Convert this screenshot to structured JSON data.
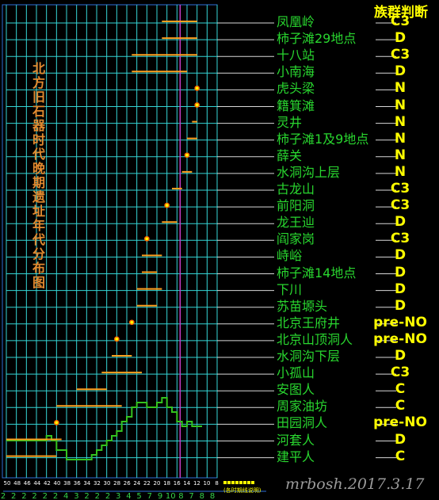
{
  "title_vertical": "北方旧石器时代晚期遗址年代分布图",
  "group_header": "族群判断",
  "signature": "mrbosh.2017.3.17",
  "axis_note": "(各时期线说明)",
  "colors": {
    "background": "#000000",
    "grid": "#36d6d6",
    "range_bar": "#ffa01e",
    "point_fill": "#ffff00",
    "point_stroke": "#ff6a00",
    "reference_line": "#c83cc8",
    "climate_curve": "#33c31f",
    "site_text": "#29d62f",
    "group_text": "#ffff00",
    "title_text": "#e28a2f",
    "leader_line": "#d8d8d8",
    "border": "#2e6fd8"
  },
  "chart_data": {
    "type": "range-timeline",
    "x_axis": {
      "reversed": true,
      "ticks": [
        "50",
        "48",
        "46",
        "44",
        "42",
        "40",
        "38",
        "36",
        "34",
        "32",
        "30",
        "28",
        "26",
        "24",
        "22",
        "20",
        "18",
        "16",
        "14",
        "12",
        "10",
        "8"
      ],
      "stage_labels": [
        "2",
        "2",
        "2",
        "2",
        "2",
        "2",
        "4",
        "3",
        "2",
        "2",
        "2",
        "3",
        "4",
        "5",
        "7",
        "9",
        "10",
        "8",
        "7",
        "8",
        "8"
      ]
    },
    "reference_line_x": 16,
    "grid": true,
    "sites": [
      {
        "name": "凤凰岭",
        "group": "C3",
        "range": [
          19,
          12
        ]
      },
      {
        "name": "柿子滩29地点",
        "group": "D",
        "range": [
          19,
          12
        ]
      },
      {
        "name": "十八站",
        "group": "C3",
        "range": [
          25,
          12
        ]
      },
      {
        "name": "小南海",
        "group": "D",
        "range": [
          25,
          14
        ]
      },
      {
        "name": "虎头梁",
        "group": "N",
        "point": 12
      },
      {
        "name": "籍箕滩",
        "group": "N",
        "point": 12
      },
      {
        "name": "灵井",
        "group": "N",
        "range": [
          13,
          12
        ]
      },
      {
        "name": "柿子滩1及9地点",
        "group": "N",
        "range": [
          14,
          12
        ]
      },
      {
        "name": "薛关",
        "group": "N",
        "point": 14
      },
      {
        "name": "水洞沟上层",
        "group": "N",
        "range": [
          15,
          13
        ]
      },
      {
        "name": "古龙山",
        "group": "C3",
        "range": [
          17,
          15
        ]
      },
      {
        "name": "前阳洞",
        "group": "C3",
        "point": 18
      },
      {
        "name": "龙王辿",
        "group": "D",
        "range": [
          19,
          16
        ]
      },
      {
        "name": "阎家岗",
        "group": "C3",
        "point": 22
      },
      {
        "name": "峙峪",
        "group": "D",
        "range": [
          23,
          19
        ]
      },
      {
        "name": "柿子滩14地点",
        "group": "D",
        "range": [
          23,
          20
        ]
      },
      {
        "name": "下川",
        "group": "D",
        "range": [
          24,
          19
        ]
      },
      {
        "name": "苏苗塬头",
        "group": "D",
        "range": [
          24,
          20
        ]
      },
      {
        "name": "北京王府井",
        "group": "pre-NO",
        "point": 25
      },
      {
        "name": "北京山顶洞人",
        "group": "pre-NO",
        "point": 28
      },
      {
        "name": "水洞沟下层",
        "group": "D",
        "range": [
          29,
          25
        ]
      },
      {
        "name": "小孤山",
        "group": "C3",
        "range": [
          31,
          23
        ]
      },
      {
        "name": "安图人",
        "group": "C",
        "range": [
          36,
          30
        ]
      },
      {
        "name": "周家油坊",
        "group": "C",
        "range": [
          40,
          27
        ]
      },
      {
        "name": "田园洞人",
        "group": "pre-NO",
        "point": 40
      },
      {
        "name": "河套人",
        "group": "D",
        "range": [
          50,
          39
        ]
      },
      {
        "name": "建平人",
        "group": "C",
        "range": [
          50,
          40
        ]
      }
    ],
    "climate_curve": [
      [
        50,
        7
      ],
      [
        48,
        7
      ],
      [
        46,
        7
      ],
      [
        44,
        7
      ],
      [
        42,
        7
      ],
      [
        42,
        8
      ],
      [
        41,
        8
      ],
      [
        41,
        7
      ],
      [
        40,
        7
      ],
      [
        40,
        5
      ],
      [
        38,
        5
      ],
      [
        38,
        3
      ],
      [
        36,
        3
      ],
      [
        34,
        3
      ],
      [
        33,
        3
      ],
      [
        33,
        4
      ],
      [
        32,
        4
      ],
      [
        32,
        5
      ],
      [
        31,
        5
      ],
      [
        31,
        6
      ],
      [
        30,
        6
      ],
      [
        30,
        7
      ],
      [
        29,
        7
      ],
      [
        29,
        8
      ],
      [
        28,
        8
      ],
      [
        28,
        9
      ],
      [
        27,
        9
      ],
      [
        27,
        11
      ],
      [
        26,
        11
      ],
      [
        26,
        12
      ],
      [
        25,
        12
      ],
      [
        25,
        14
      ],
      [
        24,
        14
      ],
      [
        24,
        15
      ],
      [
        22,
        15
      ],
      [
        22,
        14
      ],
      [
        20,
        14
      ],
      [
        20,
        15
      ],
      [
        19,
        15
      ],
      [
        19,
        16
      ],
      [
        18,
        16
      ],
      [
        18,
        14
      ],
      [
        17,
        14
      ],
      [
        17,
        13
      ],
      [
        16,
        13
      ],
      [
        16,
        11
      ],
      [
        15,
        11
      ],
      [
        15,
        10
      ],
      [
        14,
        10
      ],
      [
        14,
        11
      ],
      [
        13,
        11
      ],
      [
        13,
        10
      ],
      [
        12,
        10
      ],
      [
        11,
        10
      ]
    ],
    "climate_scale": [
      0,
      20
    ]
  }
}
